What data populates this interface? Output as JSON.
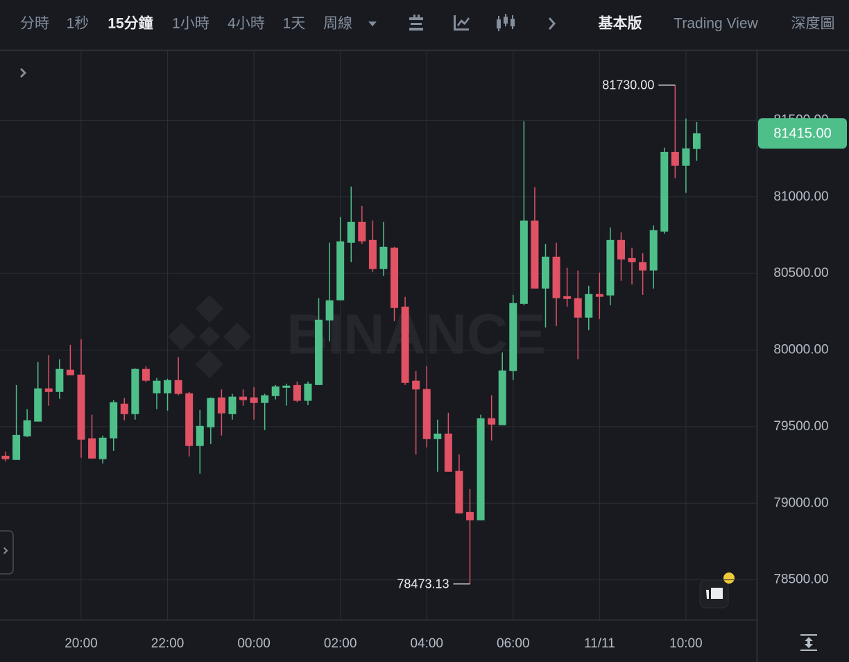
{
  "toolbar": {
    "intervals": [
      "分時",
      "1秒",
      "15分鐘",
      "1小時",
      "4小時",
      "1天",
      "周線"
    ],
    "active_interval": 2,
    "views": [
      "基本版",
      "Trading View",
      "深度圖"
    ],
    "active_view": 0
  },
  "chart_data": {
    "type": "candlestick",
    "watermark": "BINANCE",
    "up_color": "#4fbf8a",
    "down_color": "#e05264",
    "categories": [
      null,
      null,
      null,
      null,
      null,
      null,
      null,
      "20:00",
      null,
      null,
      null,
      null,
      null,
      null,
      null,
      "22:00",
      null,
      null,
      null,
      null,
      null,
      null,
      null,
      "00:00",
      null,
      null,
      null,
      null,
      null,
      null,
      null,
      "02:00",
      null,
      null,
      null,
      null,
      null,
      null,
      null,
      "04:00",
      null,
      null,
      null,
      null,
      null,
      null,
      null,
      "06:00",
      null,
      null,
      null,
      null,
      null,
      null,
      null,
      "11/11",
      null,
      null,
      null,
      null,
      null,
      null,
      null,
      "10:00",
      null
    ],
    "open": [
      79310,
      79283,
      79437,
      79533,
      79750,
      79727,
      79872,
      79840,
      79424,
      79288,
      79424,
      79650,
      79582,
      79877,
      79718,
      79718,
      79804,
      79718,
      79374,
      79496,
      79691,
      79582,
      79696,
      79691,
      79655,
      79700,
      79754,
      79772,
      79669,
      79772,
      80194,
      80325,
      80701,
      80837,
      80719,
      80529,
      80669,
      80284,
      79800,
      79746,
      79419,
      79455,
      79211,
      78943,
      78889,
      79555,
      79510,
      79863,
      80302,
      80846,
      80402,
      80610,
      80352,
      80339,
      80212,
      80366,
      80357,
      80719,
      80601,
      80574,
      80520,
      80774,
      81294,
      81204,
      81313
    ],
    "high": [
      79338,
      79772,
      79614,
      79922,
      79967,
      79940,
      80035,
      80071,
      79578,
      79442,
      79673,
      79687,
      79881,
      79895,
      79818,
      79813,
      79954,
      79727,
      79609,
      79691,
      79743,
      79714,
      79743,
      79759,
      79714,
      79772,
      79781,
      79795,
      79795,
      80339,
      80701,
      80869,
      81068,
      80941,
      80846,
      80837,
      80674,
      80348,
      79863,
      79895,
      79546,
      79591,
      79319,
      79093,
      79578,
      79705,
      79985,
      80361,
      81494,
      81063,
      80692,
      80701,
      80538,
      80520,
      80420,
      80506,
      80801,
      80769,
      80669,
      80633,
      80814,
      81322,
      81730,
      81512,
      81489
    ],
    "low": [
      79274,
      79283,
      79433,
      79533,
      79637,
      79682,
      79836,
      79297,
      79292,
      79260,
      79342,
      79542,
      79546,
      79790,
      79614,
      79605,
      79705,
      79306,
      79193,
      79387,
      79442,
      79546,
      79637,
      79546,
      79478,
      79678,
      79637,
      79660,
      79641,
      79772,
      80058,
      80325,
      80574,
      80692,
      80511,
      80484,
      80189,
      79772,
      79319,
      79365,
      79206,
      79206,
      78934,
      78473.13,
      78889,
      79410,
      79510,
      79804,
      80293,
      80402,
      80148,
      80157,
      80284,
      79940,
      80130,
      80203,
      80293,
      80452,
      80429,
      80361,
      80402,
      80760,
      81122,
      81027,
      81236
    ],
    "close": [
      79288,
      79446,
      79542,
      79750,
      79727,
      79877,
      79836,
      79415,
      79292,
      79428,
      79660,
      79582,
      79877,
      79800,
      79800,
      79804,
      79714,
      79374,
      79505,
      79687,
      79587,
      79696,
      79673,
      79655,
      79705,
      79763,
      79768,
      79669,
      79781,
      80198,
      80325,
      80710,
      80837,
      80710,
      80529,
      80674,
      80275,
      79786,
      79743,
      79419,
      79455,
      79206,
      78934,
      78889,
      79555,
      79514,
      79867,
      80307,
      80846,
      80402,
      80610,
      80339,
      80334,
      80212,
      80366,
      80348,
      80719,
      80592,
      80574,
      80520,
      80783,
      81294,
      81204,
      81317,
      81415
    ],
    "high_label": "81730.00",
    "low_label": "78473.13",
    "last_label": "81415.00",
    "ylim": [
      78240,
      81955
    ],
    "yticks": [
      {
        "value": 78500,
        "label": "78500.00"
      },
      {
        "value": 79000,
        "label": "79000.00"
      },
      {
        "value": 79500,
        "label": "79500.00"
      },
      {
        "value": 80000,
        "label": "80000.00"
      },
      {
        "value": 80500,
        "label": "80500.00"
      },
      {
        "value": 81000,
        "label": "81000.00"
      },
      {
        "value": 81500,
        "label": "81500.00"
      }
    ],
    "grid": true
  }
}
